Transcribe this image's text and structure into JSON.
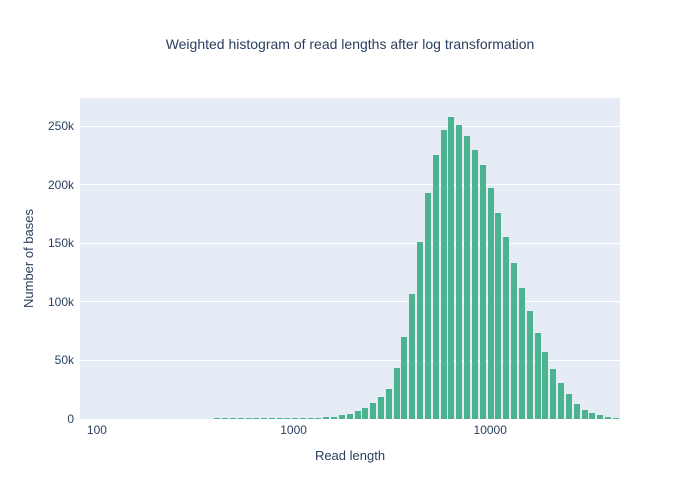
{
  "title": "Weighted histogram of read lengths after log transformation",
  "colors": {
    "bar": "#4cb391",
    "plot_background": "#e5ecf6",
    "gridline": "#ffffff",
    "text": "#2a3f5f"
  },
  "chart_data": {
    "type": "bar",
    "subtype": "weighted-histogram",
    "title": "Weighted histogram of read lengths after log transformation",
    "xlabel": "Read length",
    "ylabel": "Number of bases",
    "x_scale": "log",
    "xlim": [
      82,
      45700
    ],
    "ylim": [
      0,
      274000
    ],
    "grid": true,
    "legend_position": "none",
    "x_ticks": [
      {
        "value": 100,
        "label": "100"
      },
      {
        "value": 1000,
        "label": "1000"
      },
      {
        "value": 10000,
        "label": "10000"
      }
    ],
    "y_ticks": [
      {
        "value": 0,
        "label": "0"
      },
      {
        "value": 50000,
        "label": "50k"
      },
      {
        "value": 100000,
        "label": "100k"
      },
      {
        "value": 150000,
        "label": "150k"
      },
      {
        "value": 200000,
        "label": "200k"
      },
      {
        "value": 250000,
        "label": "250k"
      }
    ],
    "bins_read_length": [
      103,
      113,
      124,
      136,
      149,
      163,
      179,
      196,
      215,
      236,
      258,
      283,
      310,
      340,
      373,
      409,
      448,
      491,
      539,
      590,
      647,
      709,
      777,
      852,
      927,
      1016,
      1114,
      1220,
      1337,
      1466,
      1606,
      1760,
      1929,
      2114,
      2317,
      2539,
      2783,
      3050,
      3343,
      3664,
      4015,
      4401,
      4823,
      5286,
      5793,
      6349,
      6959,
      7627,
      8359,
      9162,
      10041,
      11005,
      12062,
      13220,
      14489,
      15880,
      17404,
      19075,
      20907,
      22914,
      25114,
      27525,
      30168,
      33064,
      36238,
      39717,
      43530
    ],
    "values_number_of_bases": [
      300,
      310,
      320,
      330,
      340,
      350,
      360,
      370,
      380,
      390,
      400,
      410,
      420,
      430,
      440,
      450,
      460,
      470,
      480,
      490,
      500,
      520,
      540,
      560,
      600,
      700,
      800,
      900,
      1100,
      1400,
      2100,
      3100,
      4600,
      6700,
      9600,
      13500,
      18600,
      25300,
      43300,
      70300,
      107000,
      151000,
      193000,
      225000,
      247000,
      257800,
      251000,
      242000,
      230000,
      217000,
      197000,
      176000,
      155000,
      133000,
      112000,
      92000,
      73000,
      57000,
      43000,
      31000,
      21000,
      13000,
      8000,
      5300,
      3200,
      1800,
      800
    ]
  }
}
